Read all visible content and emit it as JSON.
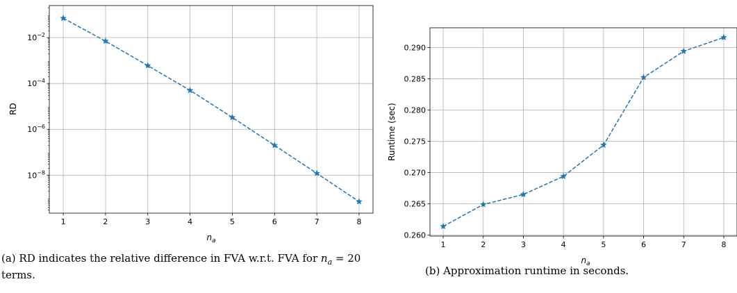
{
  "chart_data": [
    {
      "type": "line",
      "yscale": "log",
      "xlabel": "n_a",
      "ylabel": "RD",
      "x": [
        1,
        2,
        3,
        4,
        5,
        6,
        7,
        8
      ],
      "series": [
        {
          "values": [
            0.07,
            0.007,
            0.0006,
            5e-05,
            3.3e-06,
            2e-07,
            1.2e-08,
            7e-10
          ]
        }
      ],
      "xticks": [
        "1",
        "2",
        "3",
        "4",
        "5",
        "6",
        "7",
        "8"
      ],
      "yticks": [
        {
          "value": 0.01,
          "base": "10",
          "exp": "−2"
        },
        {
          "value": 0.0001,
          "base": "10",
          "exp": "−4"
        },
        {
          "value": 1e-06,
          "base": "10",
          "exp": "−6"
        },
        {
          "value": 1e-08,
          "base": "10",
          "exp": "−8"
        }
      ],
      "grid": true,
      "line_style": "dashed",
      "marker": "star",
      "color": "#1f77b4",
      "caption": "(a) RD indicates the relative difference in FVA w.r.t. FVA for n_a = 20 terms."
    },
    {
      "type": "line",
      "xlabel": "n_a",
      "ylabel": "Runtime (sec)",
      "x": [
        1,
        2,
        3,
        4,
        5,
        6,
        7,
        8
      ],
      "series": [
        {
          "values": [
            0.2614,
            0.2649,
            0.2665,
            0.2694,
            0.2744,
            0.2852,
            0.2894,
            0.2916
          ]
        }
      ],
      "xticks": [
        "1",
        "2",
        "3",
        "4",
        "5",
        "6",
        "7",
        "8"
      ],
      "yticks": [
        "0.260",
        "0.265",
        "0.270",
        "0.275",
        "0.280",
        "0.285",
        "0.290"
      ],
      "grid": true,
      "line_style": "dashed",
      "marker": "star",
      "color": "#1f77b4",
      "caption": "(b) Approximation runtime in seconds."
    }
  ],
  "captions": {
    "a_prefix": "(a) RD indicates the relative difference in FVA w.r.t. FVA for ",
    "a_var": "n",
    "a_sub": "a",
    "a_mid": " = 20 terms.",
    "b": "(b) Approximation runtime in seconds."
  }
}
